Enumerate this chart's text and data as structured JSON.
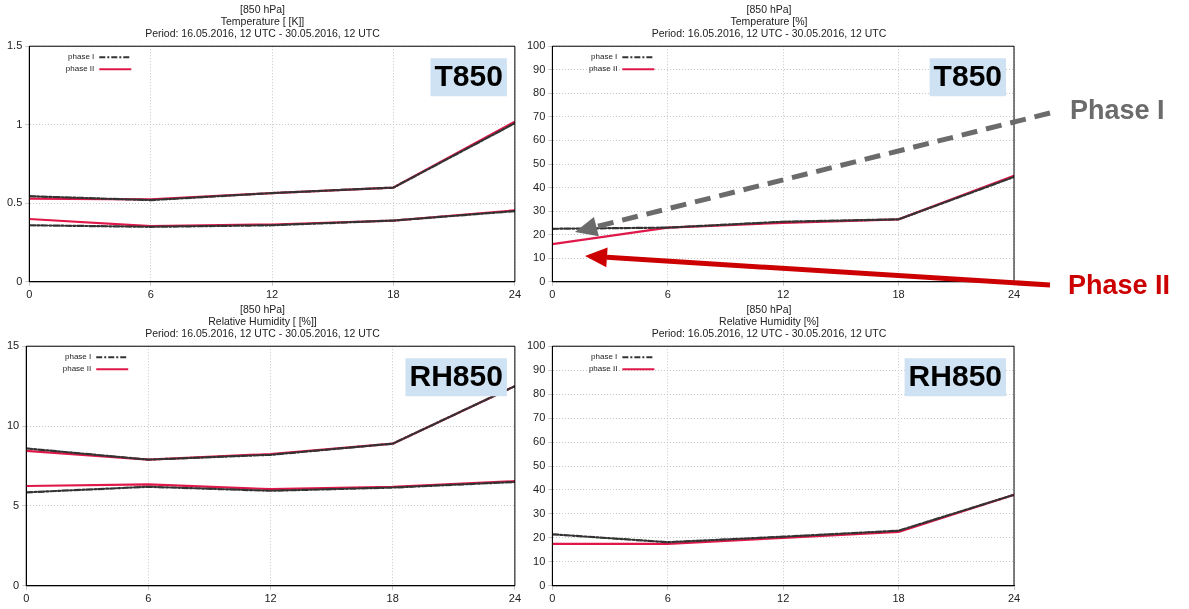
{
  "chart_data": [
    {
      "type": "line",
      "title": "[850 hPa]\nTemperature [ [K]]\nPeriod: 16.05.2016, 12 UTC - 30.05.2016, 12 UTC",
      "x": [
        0,
        6,
        12,
        18,
        24
      ],
      "xlim": [
        0,
        24
      ],
      "xticks": [
        0,
        6,
        12,
        18,
        24
      ],
      "ylim": [
        0,
        1.5
      ],
      "yticks": [
        0,
        0.5,
        1,
        1.5
      ],
      "grid": true,
      "legend": "top left",
      "annotations": [
        "T850"
      ],
      "series": [
        {
          "name": "phase I",
          "color": "#333333",
          "line_style": "dashed",
          "values": [
            0.545,
            0.52,
            0.565,
            0.6,
            1.01
          ]
        },
        {
          "name": "phase II",
          "color": "#e0184a",
          "line_style": "solid",
          "values": [
            0.53,
            0.525,
            0.565,
            0.6,
            1.02
          ]
        },
        {
          "color": "#333333",
          "line_style": "dashed",
          "values": [
            0.36,
            0.35,
            0.36,
            0.39,
            0.45
          ]
        },
        {
          "color": "#e0184a",
          "line_style": "solid",
          "values": [
            0.4,
            0.355,
            0.365,
            0.39,
            0.455
          ]
        }
      ]
    },
    {
      "type": "line",
      "title": "[850 hPa]\nTemperature [%]\nPeriod: 16.05.2016, 12 UTC - 30.05.2016, 12 UTC",
      "x": [
        0,
        6,
        12,
        18,
        24
      ],
      "xlim": [
        0,
        24
      ],
      "xticks": [
        0,
        6,
        12,
        18,
        24
      ],
      "ylim": [
        0,
        100
      ],
      "yticks": [
        0,
        10,
        20,
        30,
        40,
        50,
        60,
        70,
        80,
        90,
        100
      ],
      "grid": true,
      "legend": "top left",
      "annotations": [
        "T850",
        "Phase I",
        "Phase II"
      ],
      "series": [
        {
          "name": "phase I",
          "color": "#333333",
          "line_style": "dashed",
          "values": [
            22.5,
            23,
            25.5,
            26.5,
            44.5
          ]
        },
        {
          "name": "phase II",
          "color": "#e0184a",
          "line_style": "solid",
          "values": [
            16,
            23,
            25,
            26.5,
            45
          ]
        }
      ]
    },
    {
      "type": "line",
      "title": "[850 hPa]\nRelative Humidity [ [%]]\nPeriod: 16.05.2016, 12 UTC - 30.05.2016, 12 UTC",
      "x": [
        0,
        6,
        12,
        18,
        24
      ],
      "xlim": [
        0,
        24
      ],
      "xticks": [
        0,
        6,
        12,
        18,
        24
      ],
      "ylim": [
        0,
        15
      ],
      "yticks": [
        0,
        5,
        10,
        15
      ],
      "grid": true,
      "legend": "top left",
      "annotations": [
        "RH850"
      ],
      "series": [
        {
          "name": "phase I",
          "color": "#333333",
          "line_style": "dashed",
          "values": [
            8.6,
            7.9,
            8.2,
            8.9,
            12.5
          ]
        },
        {
          "name": "phase II",
          "color": "#e0184a",
          "line_style": "solid",
          "values": [
            8.45,
            7.9,
            8.25,
            8.9,
            12.5
          ]
        },
        {
          "color": "#333333",
          "line_style": "dashed",
          "values": [
            5.85,
            6.2,
            5.95,
            6.15,
            6.5
          ]
        },
        {
          "color": "#e0184a",
          "line_style": "solid",
          "values": [
            6.25,
            6.35,
            6.05,
            6.2,
            6.55
          ]
        }
      ]
    },
    {
      "type": "line",
      "title": "[850 hPa]\nRelative Humidity [%]\nPeriod: 16.05.2016, 12 UTC - 30.05.2016, 12 UTC",
      "x": [
        0,
        6,
        12,
        18,
        24
      ],
      "xlim": [
        0,
        24
      ],
      "xticks": [
        0,
        6,
        12,
        18,
        24
      ],
      "ylim": [
        0,
        100
      ],
      "yticks": [
        0,
        10,
        20,
        30,
        40,
        50,
        60,
        70,
        80,
        90,
        100
      ],
      "grid": true,
      "legend": "top left",
      "annotations": [
        "RH850"
      ],
      "series": [
        {
          "name": "phase I",
          "color": "#333333",
          "line_style": "dashed",
          "values": [
            21.5,
            18.2,
            20.5,
            23,
            38
          ]
        },
        {
          "name": "phase II",
          "color": "#e0184a",
          "line_style": "solid",
          "values": [
            17.5,
            17.5,
            20,
            22.5,
            38
          ]
        }
      ]
    }
  ]
}
